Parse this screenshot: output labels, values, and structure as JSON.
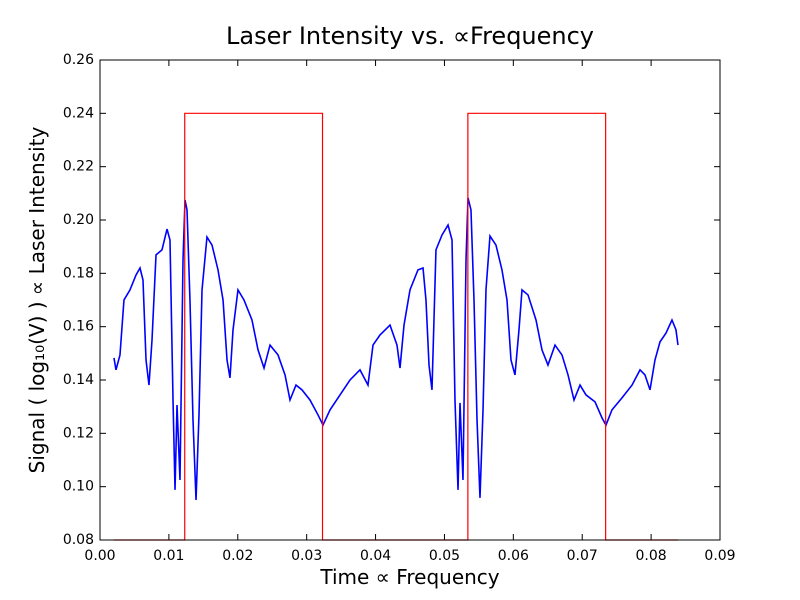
{
  "chart_data": {
    "type": "line",
    "title": "Laser Intensity vs. ∝Frequency",
    "x_label": "Time ∝ Frequency",
    "y_label": "Signal ( log₁₀(V) ) ∝ Laser Intensity",
    "xlim": [
      0,
      0.09
    ],
    "ylim": [
      0.08,
      0.26
    ],
    "xticks": [
      {
        "value": 0,
        "label": "0.00"
      },
      0.01,
      0.02,
      0.03,
      0.04,
      0.05,
      0.06,
      0.07,
      0.08,
      0.09
    ],
    "yticks": [
      0.08,
      {
        "value": 0.1,
        "label": "0.10"
      },
      0.12,
      0.14,
      0.16,
      0.18,
      {
        "value": 0.2,
        "label": "0.20"
      },
      0.22,
      0.24,
      0.26
    ],
    "grid": false,
    "series": [
      {
        "color": "#0000ff",
        "x": [
          0.00203,
          0.00232,
          0.0029,
          0.00348,
          0.00435,
          0.00523,
          0.00581,
          0.00624,
          0.00668,
          0.00711,
          0.00755,
          0.00813,
          0.009,
          0.00973,
          0.01016,
          0.0106,
          0.01089,
          0.01118,
          0.01161,
          0.01205,
          0.01234,
          0.01263,
          0.01306,
          0.0135,
          0.01394,
          0.01437,
          0.01481,
          0.01553,
          0.01626,
          0.01713,
          0.01786,
          0.01844,
          0.01887,
          0.01931,
          0.02003,
          0.0209,
          0.02206,
          0.02294,
          0.02381,
          0.02468,
          0.02584,
          0.02686,
          0.02758,
          0.02845,
          0.02932,
          0.03048,
          0.03165,
          0.03237,
          0.03339,
          0.03484,
          0.03629,
          0.03774,
          0.0389,
          0.03963,
          0.04065,
          0.0421,
          0.04311,
          0.04355,
          0.04413,
          0.045,
          0.04616,
          0.04689,
          0.04732,
          0.04776,
          0.04819,
          0.04877,
          0.04965,
          0.05052,
          0.0511,
          0.05153,
          0.05197,
          0.05226,
          0.05269,
          0.05313,
          0.05342,
          0.05385,
          0.05429,
          0.05473,
          0.05516,
          0.0556,
          0.05603,
          0.05661,
          0.05748,
          0.05835,
          0.05908,
          0.05966,
          0.06024,
          0.06082,
          0.06126,
          0.06213,
          0.06329,
          0.06416,
          0.06503,
          0.06605,
          0.06706,
          0.06794,
          0.06881,
          0.06968,
          0.07055,
          0.07186,
          0.07287,
          0.07345,
          0.07432,
          0.07577,
          0.07723,
          0.07839,
          0.07911,
          0.07984,
          0.08056,
          0.08129,
          0.08216,
          0.08303,
          0.08361,
          0.0839
        ],
        "values": [
          0.1483,
          0.1438,
          0.1494,
          0.17,
          0.1738,
          0.1794,
          0.182,
          0.1775,
          0.1475,
          0.1381,
          0.155,
          0.1869,
          0.1888,
          0.1966,
          0.1925,
          0.1325,
          0.0988,
          0.1306,
          0.1025,
          0.185,
          0.2075,
          0.2038,
          0.17,
          0.125,
          0.095,
          0.127,
          0.1738,
          0.1936,
          0.1906,
          0.1813,
          0.17,
          0.1475,
          0.1408,
          0.1588,
          0.1738,
          0.17,
          0.1625,
          0.1513,
          0.1445,
          0.1531,
          0.1494,
          0.1419,
          0.1325,
          0.1381,
          0.1363,
          0.1325,
          0.1269,
          0.1231,
          0.1288,
          0.1344,
          0.14,
          0.1438,
          0.1381,
          0.1531,
          0.1569,
          0.1606,
          0.1531,
          0.1445,
          0.1606,
          0.1738,
          0.1813,
          0.182,
          0.17,
          0.1456,
          0.1363,
          0.1888,
          0.1944,
          0.1981,
          0.1925,
          0.1325,
          0.0988,
          0.1314,
          0.1025,
          0.185,
          0.2083,
          0.2038,
          0.17,
          0.125,
          0.0958,
          0.1288,
          0.1738,
          0.194,
          0.1906,
          0.1813,
          0.17,
          0.1475,
          0.1419,
          0.1588,
          0.1738,
          0.1719,
          0.1625,
          0.1513,
          0.1456,
          0.1531,
          0.1494,
          0.1419,
          0.1325,
          0.1381,
          0.1344,
          0.1318,
          0.1258,
          0.1231,
          0.1288,
          0.1333,
          0.1381,
          0.1438,
          0.1419,
          0.1363,
          0.1475,
          0.1543,
          0.1576,
          0.1625,
          0.1588,
          0.1531
        ]
      },
      {
        "color": "#ff0000",
        "x": [
          0.002,
          0.0123,
          0.0123,
          0.0323,
          0.0323,
          0.0534,
          0.0534,
          0.0734,
          0.0734,
          0.0839
        ],
        "values": [
          0.08,
          0.08,
          0.24,
          0.24,
          0.08,
          0.08,
          0.24,
          0.24,
          0.08,
          0.08
        ]
      }
    ]
  }
}
